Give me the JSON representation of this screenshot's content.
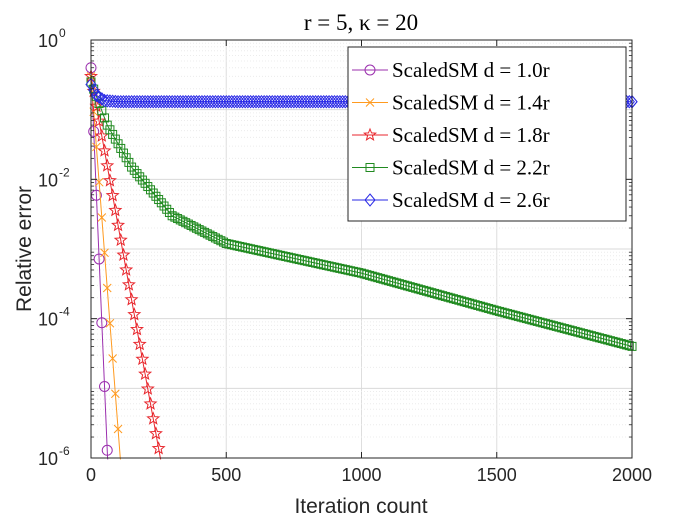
{
  "chart_data": {
    "type": "line",
    "title": "r = 5, κ = 20",
    "xlabel": "Iteration count",
    "ylabel": "Relative error",
    "xlim": [
      0,
      2000
    ],
    "ylim": [
      1e-06,
      1
    ],
    "yscale": "log",
    "grid": true,
    "legend_position": "top-right",
    "x_ticks": [
      0,
      500,
      1000,
      1500,
      2000
    ],
    "y_ticks": [
      {
        "value": 1,
        "base": "10",
        "exp": "0"
      },
      {
        "value": 0.01,
        "base": "10",
        "exp": "-2"
      },
      {
        "value": 0.0001,
        "base": "10",
        "exp": "-4"
      },
      {
        "value": 1e-06,
        "base": "10",
        "exp": "-6"
      }
    ],
    "series": [
      {
        "name": "ScaledSM d = 1.0r",
        "color": "#9b2fae",
        "marker": "circle",
        "start": 0.4,
        "rate": 0.81,
        "marker_every": 10
      },
      {
        "name": "ScaledSM d = 1.4r",
        "color": "#ff9a1f",
        "marker": "cross",
        "start": 0.3,
        "rate": 0.89,
        "marker_every": 10
      },
      {
        "name": "ScaledSM d = 1.8r",
        "color": "#e8262c",
        "marker": "star",
        "start": 0.3,
        "rate": 0.952,
        "marker_every": 10
      },
      {
        "name": "ScaledSM d = 2.2r",
        "color": "#208a20",
        "marker": "square",
        "start": 0.25,
        "knots": [
          [
            0,
            0.25
          ],
          [
            60,
            0.06
          ],
          [
            150,
            0.015
          ],
          [
            300,
            0.003
          ],
          [
            500,
            0.0012
          ],
          [
            1000,
            0.00045
          ],
          [
            1500,
            0.00013
          ],
          [
            2000,
            4e-05
          ]
        ],
        "marker_every": 10
      },
      {
        "name": "ScaledSM d = 2.6r",
        "color": "#2a2ae6",
        "marker": "diamond",
        "knots": [
          [
            0,
            0.23
          ],
          [
            20,
            0.16
          ],
          [
            50,
            0.135
          ],
          [
            100,
            0.13
          ],
          [
            2000,
            0.13
          ]
        ],
        "marker_every": 10,
        "x_end": 2000
      }
    ]
  }
}
